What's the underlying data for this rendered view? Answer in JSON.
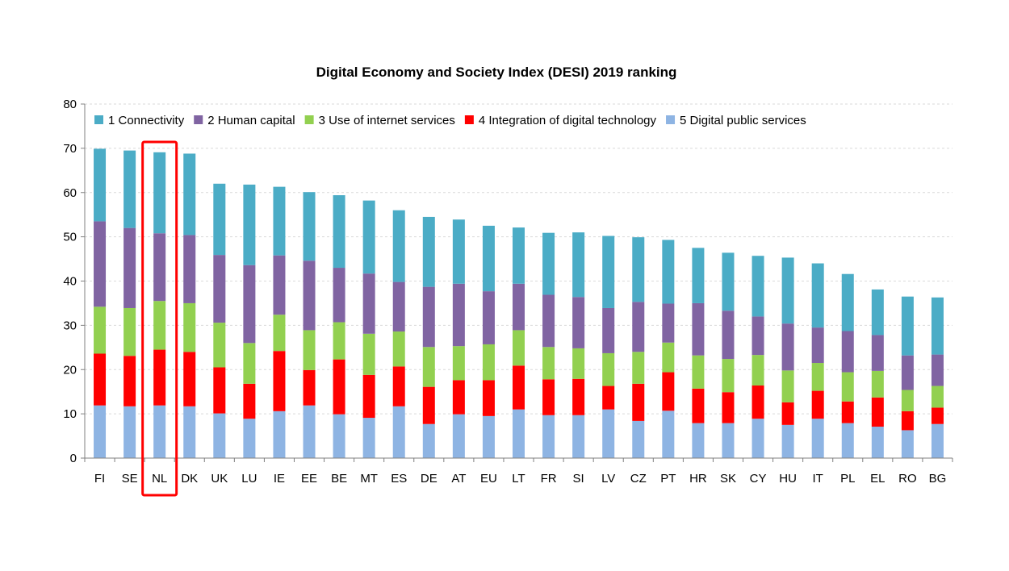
{
  "chart_data": {
    "type": "bar",
    "stacked": true,
    "title": "Digital Economy and Society Index (DESI) 2019 ranking",
    "xlabel": "",
    "ylabel": "",
    "ylim": [
      0,
      80
    ],
    "yticks": [
      "0",
      "10",
      "20",
      "30",
      "40",
      "50",
      "60",
      "70",
      "80"
    ],
    "grid": true,
    "legend_position": "top",
    "highlight": "NL",
    "categories": [
      "FI",
      "SE",
      "NL",
      "DK",
      "UK",
      "LU",
      "IE",
      "EE",
      "BE",
      "MT",
      "ES",
      "DE",
      "AT",
      "EU",
      "LT",
      "FR",
      "SI",
      "LV",
      "CZ",
      "PT",
      "HR",
      "SK",
      "CY",
      "HU",
      "IT",
      "PL",
      "EL",
      "RO",
      "BG"
    ],
    "series": [
      {
        "name": "5 Digital public services",
        "color": "#8eb4e3",
        "values": [
          11.9,
          11.7,
          11.9,
          11.7,
          10.1,
          8.9,
          10.6,
          11.9,
          9.9,
          9.1,
          11.7,
          7.7,
          9.9,
          9.5,
          11.0,
          9.7,
          9.7,
          11.0,
          8.4,
          10.7,
          7.9,
          7.9,
          8.9,
          7.5,
          8.9,
          7.9,
          7.1,
          6.3,
          7.7
        ]
      },
      {
        "name": "4 Integration of digital technology",
        "color": "#ff0000",
        "values": [
          11.7,
          11.4,
          12.6,
          12.3,
          10.4,
          7.9,
          13.6,
          8.0,
          12.4,
          9.7,
          9.0,
          8.4,
          7.7,
          8.1,
          9.9,
          8.1,
          8.2,
          5.3,
          8.4,
          8.7,
          7.8,
          7.0,
          7.5,
          5.1,
          6.3,
          4.9,
          6.6,
          4.3,
          3.7
        ]
      },
      {
        "name": "3 Use of internet services",
        "color": "#92d050",
        "values": [
          10.6,
          10.8,
          11.0,
          11.0,
          10.1,
          9.2,
          8.2,
          9.0,
          8.4,
          9.3,
          7.9,
          9.0,
          7.7,
          8.1,
          8.0,
          7.3,
          6.9,
          7.4,
          7.2,
          6.7,
          7.5,
          7.5,
          6.9,
          7.2,
          6.3,
          6.6,
          6.0,
          4.8,
          4.9
        ]
      },
      {
        "name": "2 Human capital",
        "color": "#8064a2",
        "values": [
          19.3,
          18.1,
          15.3,
          15.4,
          15.3,
          17.6,
          13.4,
          15.7,
          12.3,
          13.6,
          11.2,
          13.6,
          14.1,
          12.0,
          10.5,
          11.8,
          11.6,
          10.2,
          11.3,
          8.8,
          11.8,
          10.9,
          8.7,
          10.6,
          8.0,
          9.3,
          8.1,
          7.8,
          7.1
        ]
      },
      {
        "name": "1 Connectivity",
        "color": "#4bacc6",
        "values": [
          16.4,
          17.5,
          18.3,
          18.4,
          16.1,
          18.2,
          15.5,
          15.5,
          16.4,
          16.5,
          16.2,
          15.8,
          14.5,
          14.8,
          12.7,
          14.0,
          14.6,
          16.3,
          14.6,
          14.4,
          12.5,
          13.1,
          13.7,
          14.9,
          14.5,
          12.9,
          10.3,
          13.3,
          12.9
        ]
      }
    ],
    "legend_order": [
      4,
      3,
      2,
      1,
      0
    ]
  }
}
